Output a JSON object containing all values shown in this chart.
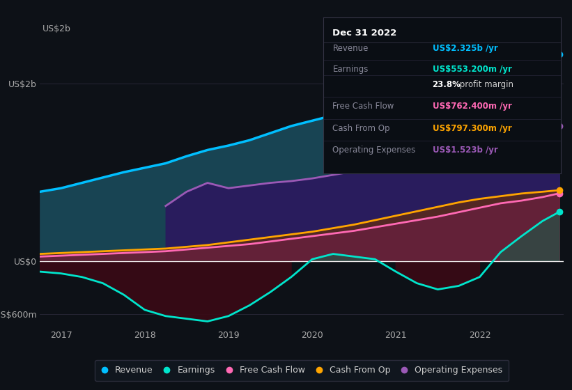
{
  "bg_color": "#0d1117",
  "x_years": [
    2016.75,
    2017.0,
    2017.25,
    2017.5,
    2017.75,
    2018.0,
    2018.25,
    2018.5,
    2018.75,
    2019.0,
    2019.25,
    2019.5,
    2019.75,
    2020.0,
    2020.25,
    2020.5,
    2020.75,
    2021.0,
    2021.25,
    2021.5,
    2021.75,
    2022.0,
    2022.25,
    2022.5,
    2022.75,
    2022.95
  ],
  "revenue": [
    0.78,
    0.82,
    0.88,
    0.94,
    1.0,
    1.05,
    1.1,
    1.18,
    1.25,
    1.3,
    1.36,
    1.44,
    1.52,
    1.58,
    1.64,
    1.7,
    1.78,
    1.85,
    1.92,
    1.98,
    2.05,
    2.12,
    2.18,
    2.24,
    2.3,
    2.325
  ],
  "earnings": [
    -0.12,
    -0.14,
    -0.18,
    -0.25,
    -0.38,
    -0.55,
    -0.62,
    -0.65,
    -0.68,
    -0.62,
    -0.5,
    -0.35,
    -0.18,
    0.02,
    0.08,
    0.05,
    0.02,
    -0.12,
    -0.25,
    -0.32,
    -0.28,
    -0.18,
    0.1,
    0.28,
    0.45,
    0.553
  ],
  "free_cash_flow": [
    0.05,
    0.06,
    0.07,
    0.08,
    0.09,
    0.1,
    0.11,
    0.13,
    0.15,
    0.17,
    0.19,
    0.22,
    0.25,
    0.28,
    0.31,
    0.34,
    0.38,
    0.42,
    0.46,
    0.5,
    0.55,
    0.6,
    0.65,
    0.68,
    0.72,
    0.762
  ],
  "cash_from_op": [
    0.08,
    0.09,
    0.1,
    0.11,
    0.12,
    0.13,
    0.14,
    0.16,
    0.18,
    0.21,
    0.24,
    0.27,
    0.3,
    0.33,
    0.37,
    0.41,
    0.46,
    0.51,
    0.56,
    0.61,
    0.66,
    0.7,
    0.73,
    0.76,
    0.78,
    0.797
  ],
  "operating_expenses": [
    0.0,
    0.0,
    0.0,
    0.0,
    0.0,
    0.0,
    0.62,
    0.78,
    0.88,
    0.82,
    0.85,
    0.88,
    0.9,
    0.93,
    0.97,
    1.01,
    1.06,
    1.1,
    1.14,
    1.19,
    1.24,
    1.3,
    1.36,
    1.42,
    1.48,
    1.523
  ],
  "revenue_color": "#00bfff",
  "earnings_color": "#00e5cc",
  "free_cash_flow_color": "#ff69b4",
  "cash_from_op_color": "#ffa500",
  "operating_expenses_color": "#9b59b6",
  "ylim_min": -0.75,
  "ylim_max": 2.5,
  "yticks": [
    -0.6,
    0.0,
    2.0
  ],
  "ytick_labels": [
    "-US$600m",
    "US$0",
    "US$2b"
  ],
  "year_ticks": [
    2017,
    2018,
    2019,
    2020,
    2021,
    2022
  ],
  "legend_labels": [
    "Revenue",
    "Earnings",
    "Free Cash Flow",
    "Cash From Op",
    "Operating Expenses"
  ],
  "legend_colors": [
    "#00bfff",
    "#00e5cc",
    "#ff69b4",
    "#ffa500",
    "#9b59b6"
  ],
  "info_box_title": "Dec 31 2022",
  "info_rows": [
    {
      "label": "Revenue",
      "value": "US$2.325b /yr",
      "value_color": "#00bfff",
      "bold_part": ""
    },
    {
      "label": "Earnings",
      "value": "US$553.200m /yr",
      "value_color": "#00e5cc",
      "bold_part": ""
    },
    {
      "label": "",
      "value": "23.8% profit margin",
      "value_color": "#ffffff",
      "bold_part": "23.8%"
    },
    {
      "label": "Free Cash Flow",
      "value": "US$762.400m /yr",
      "value_color": "#ff69b4",
      "bold_part": ""
    },
    {
      "label": "Cash From Op",
      "value": "US$797.300m /yr",
      "value_color": "#ffa500",
      "bold_part": ""
    },
    {
      "label": "Operating Expenses",
      "value": "US$1.523b /yr",
      "value_color": "#9b59b6",
      "bold_part": ""
    }
  ]
}
